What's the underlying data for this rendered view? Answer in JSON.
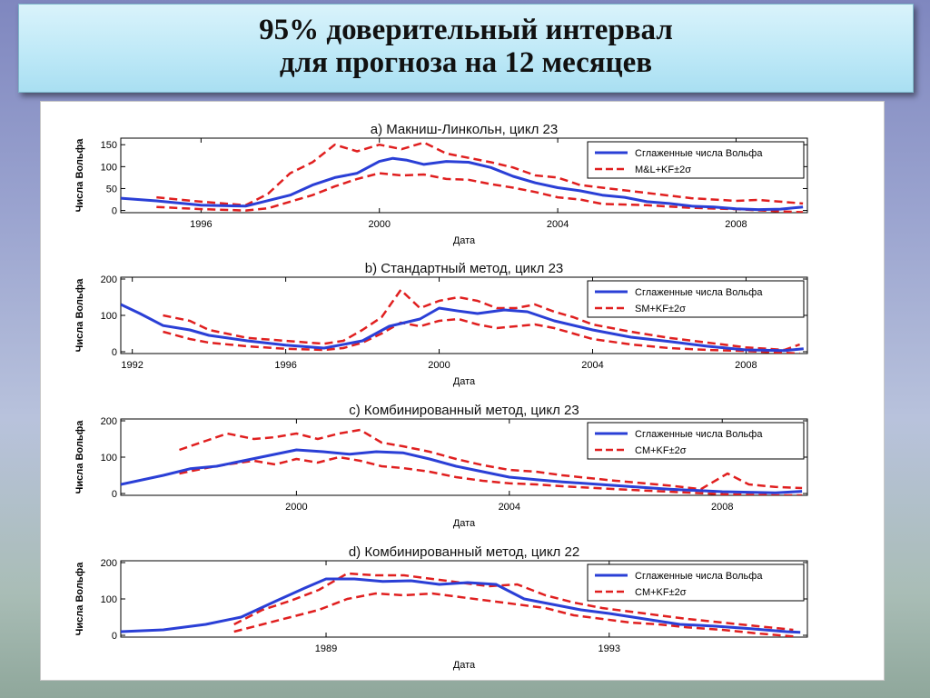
{
  "slide": {
    "title_line1": "95% доверительный интервал",
    "title_line2": "для прогноза на 12 месяцев"
  },
  "colors": {
    "smoothed": "#2a3fd6",
    "band": "#e01f1f",
    "axis": "#000000"
  },
  "chart_data": [
    {
      "type": "line",
      "title": "a) Макниш-Линкольн, цикл 23",
      "xlabel": "Дата",
      "ylabel": "Числа Вольфа",
      "xlim": [
        1994.2,
        2009.6
      ],
      "ylim": [
        -5,
        165
      ],
      "xticks": [
        1996,
        2000,
        2004,
        2008
      ],
      "yticks": [
        0,
        50,
        100,
        150
      ],
      "legend": "top-right",
      "series": [
        {
          "name": "Сглаженные числа Вольфа",
          "style": "solid",
          "x": [
            1994.2,
            1995,
            1996,
            1997,
            1998,
            1998.5,
            1999,
            1999.5,
            2000,
            2000.3,
            2000.6,
            2001,
            2001.5,
            2002,
            2002.5,
            2003,
            2003.5,
            2004,
            2004.5,
            2005,
            2005.5,
            2006,
            2006.5,
            2007,
            2007.5,
            2008,
            2008.5,
            2009,
            2009.5
          ],
          "y": [
            28,
            22,
            12,
            10,
            35,
            58,
            75,
            85,
            112,
            119,
            115,
            105,
            112,
            110,
            98,
            78,
            63,
            52,
            45,
            35,
            30,
            20,
            16,
            10,
            8,
            4,
            2,
            3,
            8
          ]
        },
        {
          "name": "M&L+KF±2σ",
          "style": "dashed",
          "band": "upper",
          "x": [
            1995,
            1996,
            1997,
            1997.5,
            1998,
            1998.5,
            1999,
            1999.5,
            2000,
            2000.5,
            2001,
            2001.5,
            2002,
            2002.5,
            2003,
            2003.5,
            2004,
            2004.5,
            2005,
            2006,
            2007,
            2008,
            2008.5,
            2009,
            2009.5
          ],
          "y": [
            30,
            20,
            12,
            38,
            85,
            110,
            150,
            135,
            150,
            140,
            155,
            130,
            120,
            110,
            98,
            80,
            75,
            58,
            52,
            40,
            28,
            22,
            24,
            20,
            16
          ]
        },
        {
          "name": "",
          "style": "dashed",
          "band": "lower",
          "x": [
            1995,
            1996,
            1997,
            1997.5,
            1998,
            1998.5,
            1999,
            1999.5,
            2000,
            2000.5,
            2001,
            2001.5,
            2002,
            2002.5,
            2003,
            2003.5,
            2004,
            2004.5,
            2005,
            2006,
            2007,
            2008,
            2009,
            2009.5
          ],
          "y": [
            8,
            3,
            0,
            5,
            20,
            35,
            55,
            72,
            85,
            80,
            82,
            72,
            70,
            60,
            52,
            42,
            30,
            25,
            15,
            12,
            6,
            3,
            -2,
            -4
          ]
        }
      ]
    },
    {
      "type": "line",
      "title": "b) Стандартный метод, цикл 23",
      "xlabel": "Дата",
      "ylabel": "Числа Вольфа",
      "xlim": [
        1991.7,
        2009.6
      ],
      "ylim": [
        -5,
        205
      ],
      "xticks": [
        1992,
        1996,
        2000,
        2004,
        2008
      ],
      "yticks": [
        0,
        100,
        200
      ],
      "legend": "top-right",
      "series": [
        {
          "name": "Сглаженные числа Вольфа",
          "style": "solid",
          "x": [
            1991.7,
            1992.2,
            1992.8,
            1993.5,
            1994,
            1995,
            1996,
            1997,
            1998,
            1998.7,
            1999.5,
            2000,
            2000.5,
            2001,
            2001.7,
            2002.3,
            2003,
            2004,
            2005,
            2006,
            2007,
            2008,
            2009,
            2009.5
          ],
          "y": [
            130,
            105,
            72,
            60,
            45,
            30,
            18,
            10,
            30,
            70,
            90,
            120,
            112,
            105,
            115,
            110,
            85,
            60,
            40,
            28,
            15,
            5,
            3,
            8
          ]
        },
        {
          "name": "SM+KF±2σ",
          "style": "dashed",
          "band": "upper",
          "x": [
            1992.8,
            1993.5,
            1994,
            1995,
            1996,
            1997,
            1997.5,
            1998,
            1998.5,
            1999,
            1999.5,
            2000,
            2000.5,
            2001,
            2001.5,
            2002,
            2002.5,
            2003,
            2003.5,
            2004,
            2005,
            2006,
            2007,
            2008,
            2009,
            2009.4
          ],
          "y": [
            100,
            85,
            60,
            38,
            30,
            22,
            30,
            60,
            95,
            170,
            120,
            140,
            150,
            140,
            120,
            120,
            130,
            110,
            95,
            75,
            55,
            38,
            25,
            12,
            5,
            20
          ]
        },
        {
          "name": "",
          "style": "dashed",
          "band": "lower",
          "x": [
            1992.8,
            1993.5,
            1994,
            1995,
            1996,
            1997,
            1997.5,
            1998,
            1998.5,
            1999,
            1999.5,
            2000,
            2000.5,
            2001,
            2001.5,
            2002,
            2002.5,
            2003,
            2003.5,
            2004,
            2005,
            2006,
            2007,
            2008,
            2009,
            2009.4
          ],
          "y": [
            55,
            35,
            25,
            15,
            8,
            5,
            10,
            25,
            50,
            80,
            70,
            85,
            90,
            75,
            65,
            70,
            75,
            65,
            50,
            35,
            20,
            10,
            5,
            2,
            -3,
            -5
          ]
        }
      ]
    },
    {
      "type": "line",
      "title": "c) Комбинированный метод, цикл 23",
      "xlabel": "Дата",
      "ylabel": "Числа Вольфа",
      "xlim": [
        1996.7,
        2009.6
      ],
      "ylim": [
        -5,
        205
      ],
      "xticks": [
        2000,
        2004,
        2008
      ],
      "yticks": [
        0,
        100,
        200
      ],
      "legend": "top-right",
      "series": [
        {
          "name": "Сглаженные числа Вольфа",
          "style": "solid",
          "x": [
            1996.7,
            1997.5,
            1998,
            1998.5,
            1999,
            1999.5,
            2000,
            2000.5,
            2001,
            2001.5,
            2002,
            2002.5,
            2003,
            2003.5,
            2004,
            2004.5,
            2005,
            2006,
            2007,
            2008,
            2009,
            2009.5
          ],
          "y": [
            25,
            50,
            68,
            75,
            90,
            105,
            120,
            115,
            108,
            115,
            112,
            95,
            75,
            60,
            45,
            38,
            32,
            22,
            12,
            5,
            2,
            6
          ]
        },
        {
          "name": "CM+KF±2σ",
          "style": "dashed",
          "band": "upper",
          "x": [
            1997.8,
            1998.3,
            1998.7,
            1999.2,
            1999.6,
            2000,
            2000.4,
            2000.8,
            2001.2,
            2001.6,
            2002,
            2002.5,
            2003,
            2003.5,
            2004,
            2004.5,
            2005,
            2006,
            2007,
            2007.6,
            2008.1,
            2008.5,
            2009,
            2009.5
          ],
          "y": [
            120,
            145,
            165,
            150,
            155,
            165,
            150,
            165,
            175,
            140,
            130,
            115,
            95,
            78,
            65,
            60,
            50,
            35,
            22,
            12,
            55,
            25,
            18,
            15
          ]
        },
        {
          "name": "",
          "style": "dashed",
          "band": "lower",
          "x": [
            1997.8,
            1998.3,
            1998.7,
            1999.2,
            1999.6,
            2000,
            2000.4,
            2000.8,
            2001.2,
            2001.6,
            2002,
            2002.5,
            2003,
            2003.5,
            2004,
            2004.5,
            2005,
            2006,
            2007,
            2008,
            2009,
            2009.5
          ],
          "y": [
            55,
            70,
            80,
            90,
            80,
            95,
            85,
            100,
            90,
            75,
            70,
            60,
            45,
            35,
            28,
            25,
            20,
            12,
            5,
            -2,
            -5,
            -5
          ]
        }
      ]
    },
    {
      "type": "line",
      "title": "d) Комбинированный метод, цикл 22",
      "xlabel": "Дата",
      "ylabel": "Числа Вольфа",
      "xlim": [
        1986.1,
        1995.8
      ],
      "ylim": [
        -5,
        205
      ],
      "xticks": [
        1989,
        1993
      ],
      "yticks": [
        0,
        100,
        200
      ],
      "legend": "top-right",
      "series": [
        {
          "name": "Сглаженные числа Вольфа",
          "style": "solid",
          "x": [
            1986.1,
            1986.7,
            1987.3,
            1987.8,
            1988.3,
            1988.7,
            1989,
            1989.4,
            1989.8,
            1990.2,
            1990.6,
            1991,
            1991.4,
            1991.8,
            1992.2,
            1992.6,
            1993,
            1993.5,
            1994,
            1994.5,
            1995,
            1995.5,
            1995.7
          ],
          "y": [
            10,
            15,
            30,
            50,
            95,
            130,
            155,
            155,
            148,
            150,
            140,
            145,
            140,
            100,
            85,
            70,
            60,
            45,
            30,
            25,
            18,
            10,
            8
          ]
        },
        {
          "name": "CM+KF±2σ",
          "style": "dashed",
          "band": "upper",
          "x": [
            1987.7,
            1988.1,
            1988.5,
            1988.9,
            1989.3,
            1989.7,
            1990.1,
            1990.5,
            1990.9,
            1991.3,
            1991.7,
            1992.1,
            1992.5,
            1992.9,
            1993.3,
            1993.7,
            1994.1,
            1994.6,
            1995.1,
            1995.6
          ],
          "y": [
            30,
            70,
            95,
            125,
            170,
            165,
            165,
            155,
            145,
            135,
            140,
            110,
            90,
            75,
            65,
            55,
            45,
            35,
            25,
            15
          ]
        },
        {
          "name": "",
          "style": "dashed",
          "band": "lower",
          "x": [
            1987.7,
            1988.1,
            1988.5,
            1988.9,
            1989.3,
            1989.7,
            1990.1,
            1990.5,
            1990.9,
            1991.3,
            1991.7,
            1992.1,
            1992.5,
            1992.9,
            1993.3,
            1993.7,
            1994.1,
            1994.6,
            1995.1,
            1995.6
          ],
          "y": [
            10,
            30,
            50,
            70,
            100,
            115,
            110,
            115,
            105,
            95,
            85,
            75,
            55,
            45,
            35,
            30,
            22,
            15,
            5,
            -3
          ]
        }
      ]
    }
  ]
}
